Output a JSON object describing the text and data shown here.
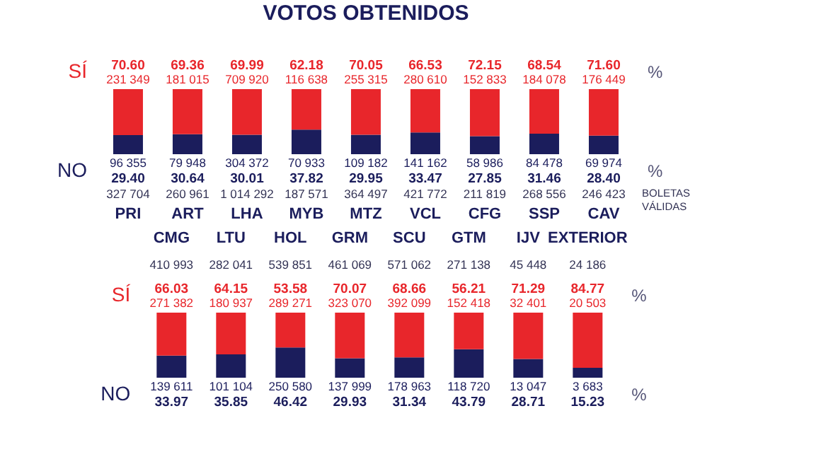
{
  "chart_data": [
    {
      "type": "bar",
      "title": "VOTOS OBTENIDOS",
      "stacked": true,
      "categories": [
        "PRI",
        "ART",
        "LHA",
        "MYB",
        "MTZ",
        "VCL",
        "CFG",
        "SSP",
        "CAV"
      ],
      "series": [
        {
          "name": "NO",
          "color": "#1b1d5c",
          "values": [
            29.4,
            30.64,
            30.01,
            37.82,
            29.95,
            33.47,
            27.85,
            31.46,
            28.4
          ],
          "value_labels": [
            "29.40",
            "30.64",
            "30.01",
            "37.82",
            "29.95",
            "33.47",
            "27.85",
            "31.46",
            "28.40"
          ]
        },
        {
          "name": "SÍ",
          "color": "#e8262b",
          "values": [
            70.6,
            69.36,
            69.99,
            62.18,
            70.05,
            66.53,
            72.15,
            68.54,
            71.6
          ],
          "value_labels": [
            "70.60",
            "69.36",
            "69.99",
            "62.18",
            "70.05",
            "66.53",
            "72.15",
            "68.54",
            "71.60"
          ]
        }
      ],
      "annotations": [
        "%",
        "%",
        "BOLETAS VÁLIDAS",
        {
          "text": "231 349",
          "x": "PRI",
          "y": 100
        },
        {
          "text": "181 015",
          "x": "ART",
          "y": 100
        },
        {
          "text": "709 920",
          "x": "LHA",
          "y": 100
        },
        {
          "text": "116 638",
          "x": "MYB",
          "y": 100
        },
        {
          "text": "255 315",
          "x": "MTZ",
          "y": 100
        },
        {
          "text": "280 610",
          "x": "VCL",
          "y": 100
        },
        {
          "text": "152 833",
          "x": "CFG",
          "y": 100
        },
        {
          "text": "184 078",
          "x": "SSP",
          "y": 100
        },
        {
          "text": "176 449",
          "x": "CAV",
          "y": 100
        },
        {
          "text": "96 355",
          "x": "PRI",
          "y": 0
        },
        {
          "text": "79 948",
          "x": "ART",
          "y": 0
        },
        {
          "text": "304 372",
          "x": "LHA",
          "y": 0
        },
        {
          "text": "70 933",
          "x": "MYB",
          "y": 0
        },
        {
          "text": "109 182",
          "x": "MTZ",
          "y": 0
        },
        {
          "text": "141 162",
          "x": "VCL",
          "y": 0
        },
        {
          "text": "58 986",
          "x": "CFG",
          "y": 0
        },
        {
          "text": "84 478",
          "x": "SSP",
          "y": 0
        },
        {
          "text": "69 974",
          "x": "CAV",
          "y": 0
        },
        "327 704",
        "260 961",
        "1 014 292",
        "187 571",
        "364 497",
        "421 772",
        "211 819",
        "268 556",
        "246 423"
      ]
    },
    {
      "type": "bar",
      "stacked": true,
      "categories": [
        "CMG",
        "LTU",
        "HOL",
        "GRM",
        "SCU",
        "GTM",
        "IJV",
        "EXTERIOR"
      ],
      "series": [
        {
          "name": "NO",
          "color": "#1b1d5c",
          "values": [
            33.97,
            35.85,
            46.42,
            29.93,
            31.34,
            43.79,
            28.71,
            15.23
          ],
          "value_labels": [
            "33.97",
            "35.85",
            "46.42",
            "29.93",
            "31.34",
            "43.79",
            "28.71",
            "15.23"
          ]
        },
        {
          "name": "SÍ",
          "color": "#e8262b",
          "values": [
            66.03,
            64.15,
            53.58,
            70.07,
            68.66,
            56.21,
            71.29,
            84.77
          ],
          "value_labels": [
            "66.03",
            "64.15",
            "53.58",
            "70.07",
            "68.66",
            "56.21",
            "71.29",
            "84.77"
          ]
        }
      ],
      "annotations": [
        "%",
        "%",
        {
          "text": "271 382",
          "x": "CMG",
          "y": 100
        },
        {
          "text": "180 937",
          "x": "LTU",
          "y": 100
        },
        {
          "text": "289 271",
          "x": "HOL",
          "y": 100
        },
        {
          "text": "323 070",
          "x": "GRM",
          "y": 100
        },
        {
          "text": "392 099",
          "x": "SCU",
          "y": 100
        },
        {
          "text": "152 418",
          "x": "GTM",
          "y": 100
        },
        {
          "text": "32 401",
          "x": "IJV",
          "y": 100
        },
        {
          "text": "20 503",
          "x": "EXTERIOR",
          "y": 100
        },
        {
          "text": "139 611",
          "x": "CMG",
          "y": 0
        },
        {
          "text": "101 104",
          "x": "LTU",
          "y": 0
        },
        {
          "text": "250 580",
          "x": "HOL",
          "y": 0
        },
        {
          "text": "137 999",
          "x": "GRM",
          "y": 0
        },
        {
          "text": "178 963",
          "x": "SCU",
          "y": 0
        },
        {
          "text": "118 720",
          "x": "GTM",
          "y": 0
        },
        {
          "text": "13 047",
          "x": "IJV",
          "y": 0
        },
        {
          "text": "3 683",
          "x": "EXTERIOR",
          "y": 0
        },
        "410 993",
        "282 041",
        "539 851",
        "461 069",
        "571 062",
        "271 138",
        "45 448",
        "24 186"
      ]
    }
  ]
}
